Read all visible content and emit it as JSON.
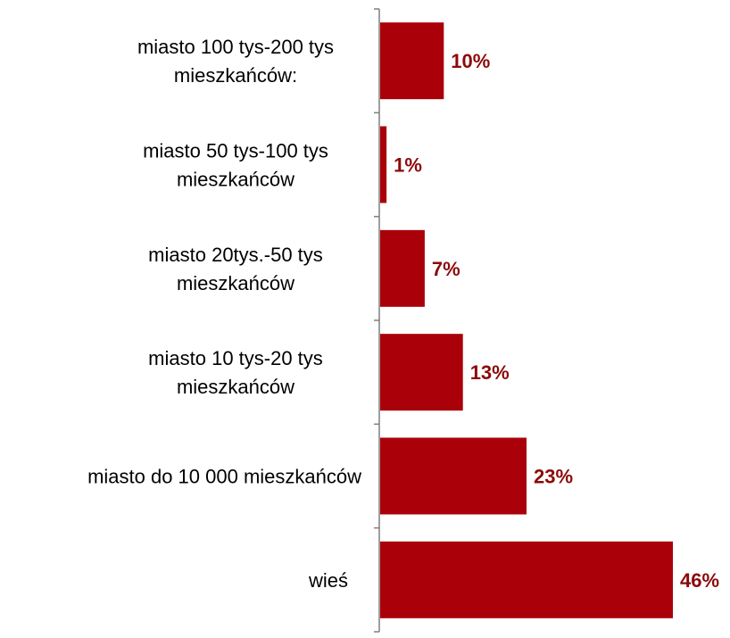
{
  "chart_data": {
    "type": "bar",
    "orientation": "horizontal",
    "categories": [
      [
        "miasto 100 tys-200 tys",
        "mieszkańców:"
      ],
      [
        "miasto 50 tys-100 tys",
        "mieszkańców"
      ],
      [
        "miasto 20tys.-50 tys",
        "mieszkańców"
      ],
      [
        "miasto 10 tys-20 tys",
        "mieszkańców"
      ],
      [
        "miasto do 10 000 mieszkańców"
      ],
      [
        "wieś"
      ]
    ],
    "values": [
      10,
      1,
      7,
      13,
      23,
      46
    ],
    "value_labels": [
      "10%",
      "1%",
      "7%",
      "13%",
      "23%",
      "46%"
    ],
    "unit": "%",
    "xlim": [
      0,
      46
    ],
    "grid": false,
    "legend": "none",
    "colors": {
      "bar": "#aa0009",
      "value_label": "#8b0a0a",
      "axis": "#7f7f7f",
      "category_label": "#000000"
    }
  }
}
